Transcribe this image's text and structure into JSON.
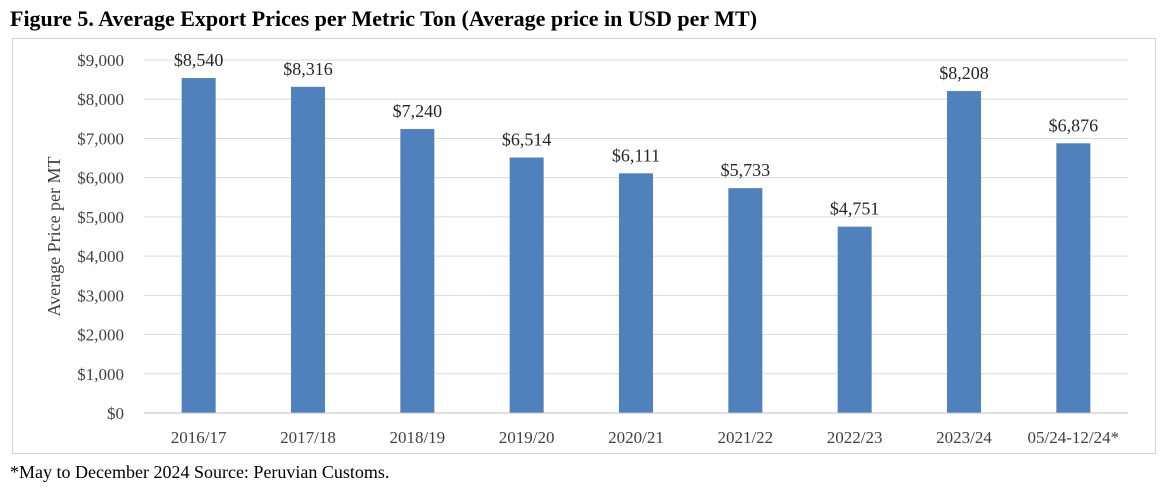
{
  "figure_title": "Figure 5. Average Export Prices per Metric Ton (Average price in USD per MT)",
  "footnote": "*May to December 2024 Source: Peruvian Customs.",
  "chart_data": {
    "type": "bar",
    "categories": [
      "2016/17",
      "2017/18",
      "2018/19",
      "2019/20",
      "2020/21",
      "2021/22",
      "2022/23",
      "2023/24",
      "05/24-12/24*"
    ],
    "values": [
      8540,
      8316,
      7240,
      6514,
      6111,
      5733,
      4751,
      8208,
      6876
    ],
    "value_labels": [
      "$8,540",
      "$8,316",
      "$7,240",
      "$6,514",
      "$6,111",
      "$5,733",
      "$4,751",
      "$8,208",
      "$6,876"
    ],
    "ylabel": "Average Price per MT",
    "ylim": [
      0,
      9000
    ],
    "yticks": [
      0,
      1000,
      2000,
      3000,
      4000,
      5000,
      6000,
      7000,
      8000,
      9000
    ],
    "ytick_labels": [
      "$0",
      "$1,000",
      "$2,000",
      "$3,000",
      "$4,000",
      "$5,000",
      "$6,000",
      "$7,000",
      "$8,000",
      "$9,000"
    ],
    "grid": true,
    "bar_color": "#4f81bd",
    "grid_color": "#d9d9d9"
  }
}
